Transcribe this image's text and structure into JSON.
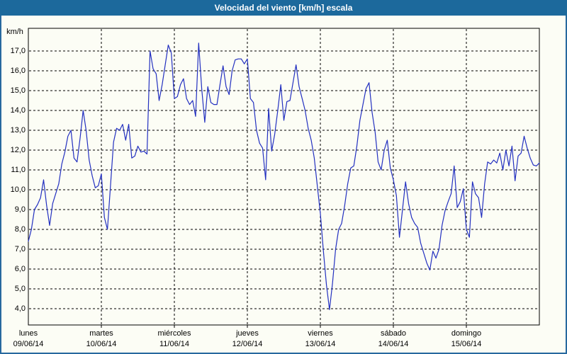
{
  "window": {
    "title": "Velocidad del viento [km/h] escala"
  },
  "colors": {
    "title_bar": "#1c699c",
    "title_text": "#ffffff",
    "frame_border": "#27699f",
    "background": "#fcfdf5",
    "line": "#2330c0",
    "grid": "#000000",
    "text": "#000000"
  },
  "chart_data": {
    "type": "line",
    "title": "Velocidad del viento [km/h] escala",
    "ylabel": "km/h",
    "xlabel": "",
    "grid": "dashed",
    "legend": "none",
    "ylim": [
      3.1,
      18.1
    ],
    "y_ticks": [
      {
        "value": 17,
        "label": "17,0"
      },
      {
        "value": 16,
        "label": "16,0"
      },
      {
        "value": 15,
        "label": "15,0"
      },
      {
        "value": 14,
        "label": "14,0"
      },
      {
        "value": 13,
        "label": "13,0"
      },
      {
        "value": 12,
        "label": "12,0"
      },
      {
        "value": 11,
        "label": "11,0"
      },
      {
        "value": 10,
        "label": "10,0"
      },
      {
        "value": 9,
        "label": "9,0"
      },
      {
        "value": 8,
        "label": "8,0"
      },
      {
        "value": 7,
        "label": "7,0"
      },
      {
        "value": 6,
        "label": "6,0"
      },
      {
        "value": 5,
        "label": "5,0"
      },
      {
        "value": 4,
        "label": "4,0"
      }
    ],
    "days": [
      {
        "name": "lunes",
        "date": "09/06/14"
      },
      {
        "name": "martes",
        "date": "10/06/14"
      },
      {
        "name": "miércoles",
        "date": "11/06/14"
      },
      {
        "name": "jueves",
        "date": "12/06/14"
      },
      {
        "name": "viernes",
        "date": "13/06/14"
      },
      {
        "name": "sábado",
        "date": "14/06/14"
      },
      {
        "name": "domingo",
        "date": "15/06/14"
      }
    ],
    "series": [
      {
        "name": "Velocidad del viento",
        "unit": "km/h",
        "interval_hours": 1,
        "values": [
          7.4,
          8.0,
          9.0,
          9.25,
          9.6,
          10.5,
          9.2,
          8.2,
          9.3,
          9.8,
          10.3,
          11.3,
          11.9,
          12.7,
          13.0,
          11.6,
          11.4,
          12.6,
          14.0,
          13.0,
          11.5,
          10.7,
          10.1,
          10.2,
          10.8,
          8.6,
          8.0,
          10.2,
          12.4,
          13.1,
          13.0,
          13.3,
          12.5,
          13.3,
          11.6,
          11.7,
          12.2,
          11.9,
          11.95,
          11.8,
          17.0,
          16.1,
          15.85,
          14.5,
          15.3,
          16.3,
          17.3,
          16.9,
          14.6,
          14.7,
          15.3,
          15.6,
          14.6,
          14.3,
          14.5,
          13.7,
          17.4,
          15.1,
          13.4,
          15.2,
          14.4,
          14.3,
          14.3,
          15.3,
          16.25,
          15.2,
          14.8,
          16.0,
          16.55,
          16.6,
          16.6,
          16.35,
          16.6,
          14.6,
          14.4,
          13.0,
          12.35,
          12.1,
          10.5,
          14.1,
          11.95,
          12.8,
          14.0,
          15.3,
          13.5,
          14.45,
          14.5,
          15.4,
          16.3,
          15.2,
          14.6,
          14.0,
          13.1,
          12.5,
          11.6,
          10.2,
          8.8,
          6.9,
          5.2,
          3.95,
          5.3,
          7.0,
          8.0,
          8.3,
          9.2,
          10.3,
          11.1,
          11.2,
          12.2,
          13.5,
          14.3,
          15.1,
          15.4,
          13.9,
          12.9,
          11.4,
          11.0,
          12.0,
          12.5,
          11.1,
          10.5,
          9.7,
          7.6,
          9.0,
          10.4,
          9.3,
          8.6,
          8.3,
          8.1,
          7.3,
          6.8,
          6.3,
          5.95,
          6.9,
          6.55,
          7.0,
          8.2,
          8.95,
          9.4,
          9.8,
          11.2,
          9.1,
          9.4,
          10.05,
          8.0,
          7.6,
          10.4,
          9.8,
          9.6,
          8.6,
          10.3,
          11.4,
          11.3,
          11.5,
          11.35,
          11.85,
          11.0,
          12.0,
          11.2,
          12.2,
          10.45,
          11.7,
          11.85,
          12.7,
          12.1,
          11.6,
          11.25,
          11.2,
          11.35
        ]
      }
    ]
  }
}
